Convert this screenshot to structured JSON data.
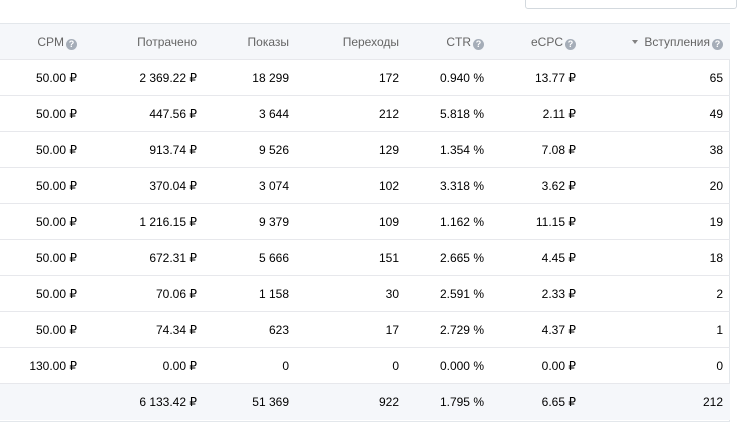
{
  "columns": {
    "cpm": "CPM",
    "spent": "Потрачено",
    "impressions": "Показы",
    "clicks": "Переходы",
    "ctr": "CTR",
    "ecpc": "eCPC",
    "joins": "Вступления"
  },
  "help_glyph": "?",
  "rows": [
    {
      "cpm": "50.00 ₽",
      "spent": "2 369.22 ₽",
      "impressions": "18 299",
      "clicks": "172",
      "ctr": "0.940 %",
      "ecpc": "13.77 ₽",
      "joins": "65"
    },
    {
      "cpm": "50.00 ₽",
      "spent": "447.56 ₽",
      "impressions": "3 644",
      "clicks": "212",
      "ctr": "5.818 %",
      "ecpc": "2.11 ₽",
      "joins": "49"
    },
    {
      "cpm": "50.00 ₽",
      "spent": "913.74 ₽",
      "impressions": "9 526",
      "clicks": "129",
      "ctr": "1.354 %",
      "ecpc": "7.08 ₽",
      "joins": "38"
    },
    {
      "cpm": "50.00 ₽",
      "spent": "370.04 ₽",
      "impressions": "3 074",
      "clicks": "102",
      "ctr": "3.318 %",
      "ecpc": "3.62 ₽",
      "joins": "20"
    },
    {
      "cpm": "50.00 ₽",
      "spent": "1 216.15 ₽",
      "impressions": "9 379",
      "clicks": "109",
      "ctr": "1.162 %",
      "ecpc": "11.15 ₽",
      "joins": "19"
    },
    {
      "cpm": "50.00 ₽",
      "spent": "672.31 ₽",
      "impressions": "5 666",
      "clicks": "151",
      "ctr": "2.665 %",
      "ecpc": "4.45 ₽",
      "joins": "18"
    },
    {
      "cpm": "50.00 ₽",
      "spent": "70.06 ₽",
      "impressions": "1 158",
      "clicks": "30",
      "ctr": "2.591 %",
      "ecpc": "2.33 ₽",
      "joins": "2"
    },
    {
      "cpm": "50.00 ₽",
      "spent": "74.34 ₽",
      "impressions": "623",
      "clicks": "17",
      "ctr": "2.729 %",
      "ecpc": "4.37 ₽",
      "joins": "1"
    },
    {
      "cpm": "130.00 ₽",
      "spent": "0.00 ₽",
      "impressions": "0",
      "clicks": "0",
      "ctr": "0.000 %",
      "ecpc": "0.00 ₽",
      "joins": "0"
    }
  ],
  "total": {
    "cpm": "",
    "spent": "6 133.42 ₽",
    "impressions": "51 369",
    "clicks": "922",
    "ctr": "1.795 %",
    "ecpc": "6.65 ₽",
    "joins": "212"
  }
}
